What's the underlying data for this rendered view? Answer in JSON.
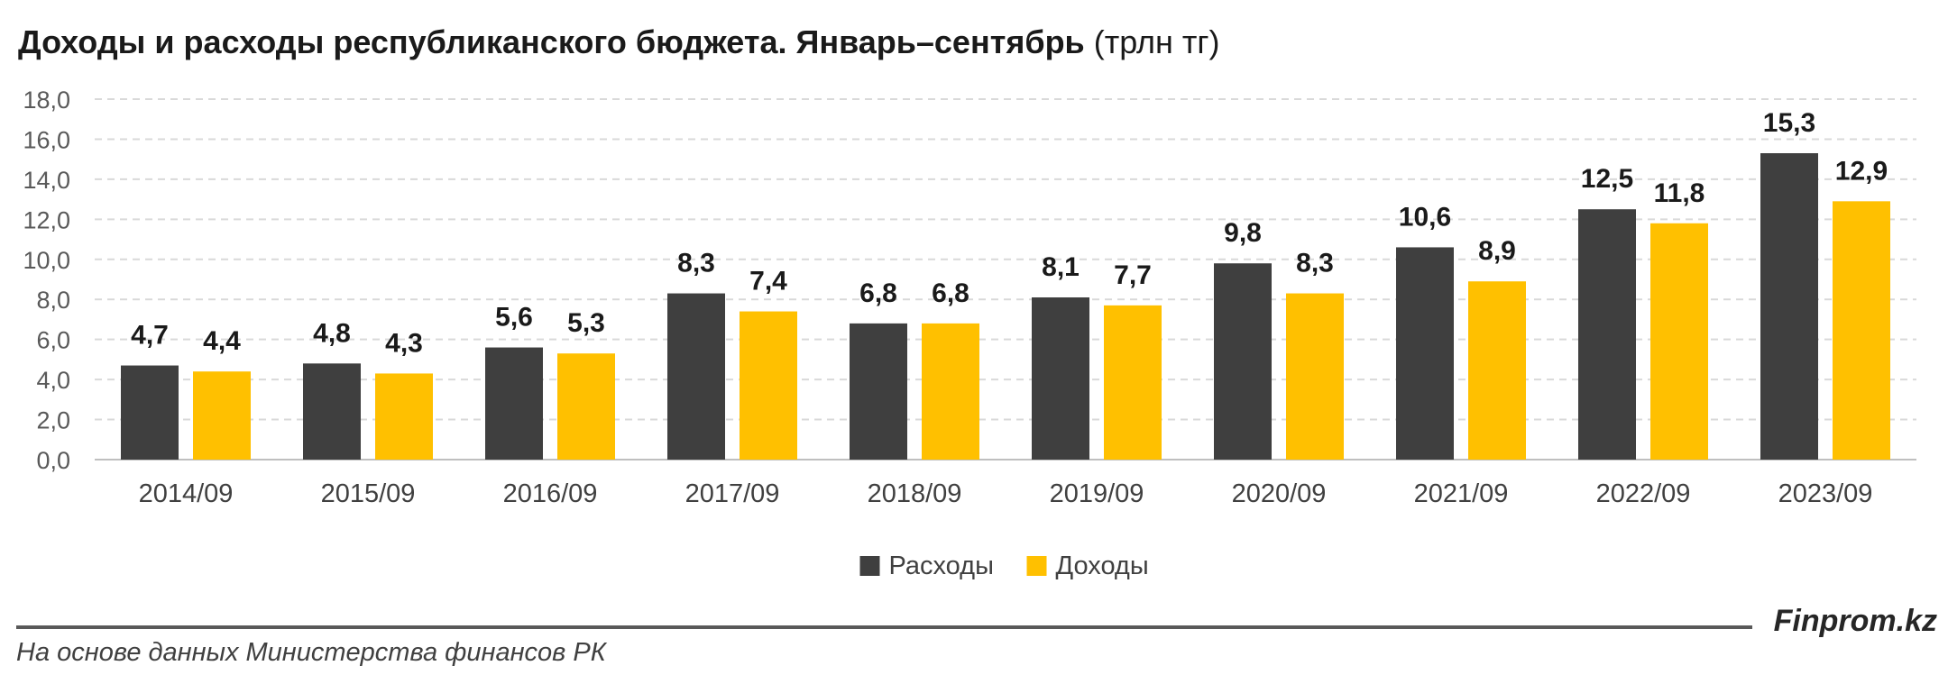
{
  "header": {
    "title": "Доходы и расходы республиканского бюджета. Январь–сентябрь",
    "unit": "(трлн тг)"
  },
  "footer": {
    "source": "На основе данных Министерства финансов РК",
    "brand": "Finprom.kz"
  },
  "chart_data": {
    "type": "bar",
    "categories": [
      "2014/09",
      "2015/09",
      "2016/09",
      "2017/09",
      "2018/09",
      "2019/09",
      "2020/09",
      "2021/09",
      "2022/09",
      "2023/09"
    ],
    "series": [
      {
        "name": "Расходы",
        "color": "#3f3f3f",
        "values": [
          4.7,
          4.8,
          5.6,
          8.3,
          6.8,
          8.1,
          9.8,
          10.6,
          12.5,
          15.3
        ],
        "labels": [
          "4,7",
          "4,8",
          "5,6",
          "8,3",
          "6,8",
          "8,1",
          "9,8",
          "10,6",
          "12,5",
          "15,3"
        ]
      },
      {
        "name": "Доходы",
        "color": "#ffc000",
        "values": [
          4.4,
          4.3,
          5.3,
          7.4,
          6.8,
          7.7,
          8.3,
          8.9,
          11.8,
          12.9
        ],
        "labels": [
          "4,4",
          "4,3",
          "5,3",
          "7,4",
          "6,8",
          "7,7",
          "8,3",
          "8,9",
          "11,8",
          "12,9"
        ]
      }
    ],
    "ylim": [
      0,
      18
    ],
    "yticks": [
      "0,0",
      "2,0",
      "4,0",
      "6,0",
      "8,0",
      "10,0",
      "12,0",
      "14,0",
      "16,0",
      "18,0"
    ],
    "ytick_values": [
      0,
      2,
      4,
      6,
      8,
      10,
      12,
      14,
      16,
      18
    ],
    "grid": true,
    "legend_position": "bottom-center"
  }
}
